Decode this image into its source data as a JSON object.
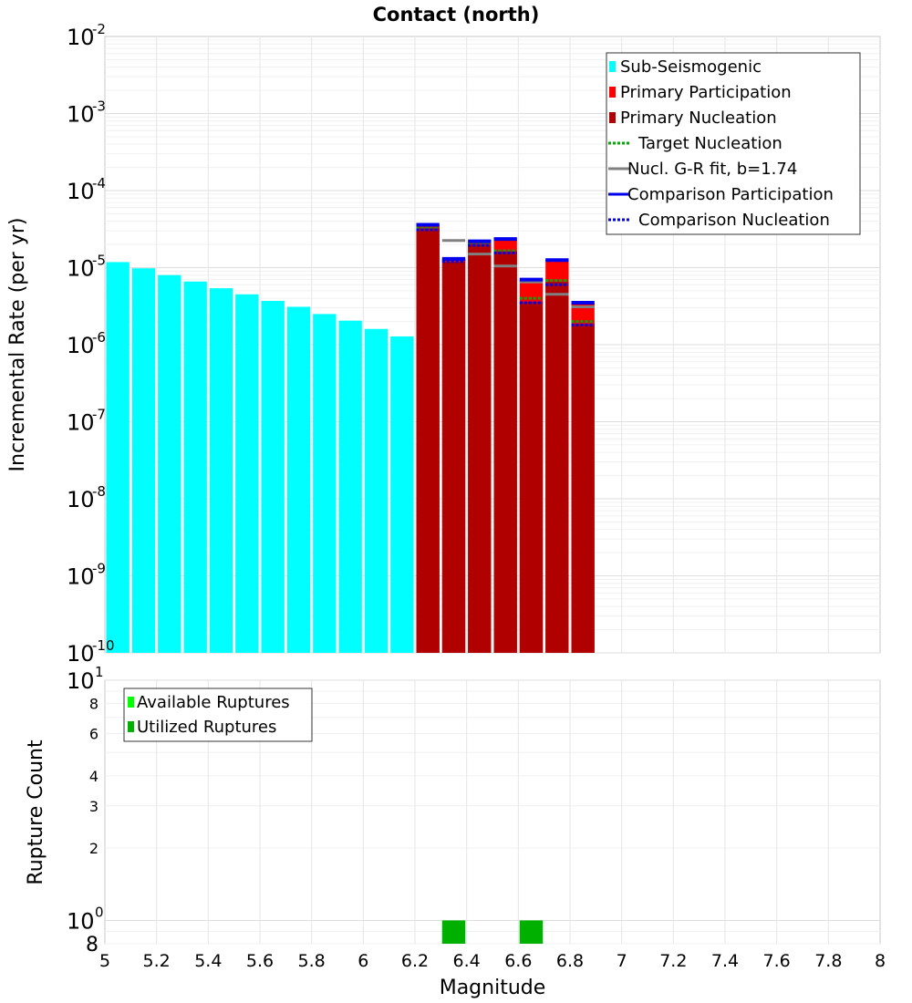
{
  "chart_data": [
    {
      "type": "bar",
      "title": "Contact (north)",
      "xlabel": "",
      "ylabel": "Incremental Rate (per yr)",
      "yscale": "log",
      "xlim": [
        5,
        8
      ],
      "ylim": [
        1e-10,
        0.01
      ],
      "y_tick_labels": [
        {
          "base": "10",
          "exp": "-2",
          "value": 0.01
        },
        {
          "base": "10",
          "exp": "-3",
          "value": 0.001
        },
        {
          "base": "10",
          "exp": "-4",
          "value": 0.0001
        },
        {
          "base": "10",
          "exp": "-5",
          "value": 1e-05
        },
        {
          "base": "10",
          "exp": "-6",
          "value": 1e-06
        },
        {
          "base": "10",
          "exp": "-7",
          "value": 1e-07
        },
        {
          "base": "10",
          "exp": "-8",
          "value": 1e-08
        },
        {
          "base": "10",
          "exp": "-9",
          "value": 1e-09
        },
        {
          "base": "10",
          "exp": "-10",
          "value": 1e-10
        }
      ],
      "bin_width": 0.1,
      "legend": {
        "position": "top-right",
        "entries": [
          {
            "label": "Sub-Seismogenic",
            "style": "box",
            "color": "#00ffff"
          },
          {
            "label": "Primary Participation",
            "style": "box",
            "color": "#ff0000"
          },
          {
            "label": "Primary Nucleation",
            "style": "box",
            "color": "#b00000"
          },
          {
            "label": "Target Nucleation",
            "style": "dotted",
            "color": "#00aa00"
          },
          {
            "label": "Nucl. G-R fit, b=1.74",
            "style": "solid",
            "color": "#808080"
          },
          {
            "label": "Comparison Participation",
            "style": "solid",
            "color": "#0000ee"
          },
          {
            "label": "Comparison Nucleation",
            "style": "dotted",
            "color": "#0000ee"
          }
        ]
      },
      "series": [
        {
          "name": "Sub-Seismogenic",
          "color": "#00ffff",
          "x": [
            5.05,
            5.15,
            5.25,
            5.35,
            5.45,
            5.55,
            5.65,
            5.75,
            5.85,
            5.95,
            6.05,
            6.15
          ],
          "values": [
            1.18e-05,
            9.8e-06,
            8e-06,
            6.6e-06,
            5.4e-06,
            4.5e-06,
            3.7e-06,
            3.1e-06,
            2.5e-06,
            2.05e-06,
            1.6e-06,
            1.28e-06
          ]
        },
        {
          "name": "Primary Participation",
          "color": "#ff0000",
          "x": [
            6.25,
            6.35,
            6.45,
            6.55,
            6.65,
            6.75,
            6.85
          ],
          "values": [
            3.6e-05,
            1.3e-05,
            2.2e-05,
            2.35e-05,
            7e-06,
            1.25e-05,
            3.5e-06
          ]
        },
        {
          "name": "Primary Nucleation",
          "color": "#b00000",
          "x": [
            6.25,
            6.35,
            6.45,
            6.55,
            6.65,
            6.75,
            6.85
          ],
          "values": [
            3.2e-05,
            1.2e-05,
            2e-05,
            1.6e-05,
            3.6e-06,
            6.5e-06,
            1.85e-06
          ]
        },
        {
          "name": "Target Nucleation",
          "color": "#00aa00",
          "x": [
            6.25,
            6.35,
            6.45,
            6.55,
            6.65,
            6.75,
            6.85
          ],
          "values": [
            3.25e-05,
            1.25e-05,
            2.05e-05,
            1.65e-05,
            4e-06,
            6.8e-06,
            2e-06
          ]
        },
        {
          "name": "Nucl. G-R fit, b=1.74",
          "color": "#808080",
          "x": [
            6.35,
            6.45,
            6.55,
            6.65,
            6.75,
            6.85
          ],
          "values": [
            2.25e-05,
            1.5e-05,
            1.05e-05,
            6.5e-06,
            4.5e-06,
            3.1e-06
          ]
        },
        {
          "name": "Comparison Participation",
          "color": "#0000ee",
          "x": [
            6.25,
            6.35,
            6.45,
            6.55,
            6.65,
            6.75,
            6.85
          ],
          "values": [
            3.6e-05,
            1.3e-05,
            2.2e-05,
            2.35e-05,
            7e-06,
            1.25e-05,
            3.5e-06
          ]
        },
        {
          "name": "Comparison Nucleation",
          "color": "#0000ee",
          "x": [
            6.25,
            6.35,
            6.45,
            6.55,
            6.65,
            6.75,
            6.85
          ],
          "values": [
            3.1e-05,
            1.2e-05,
            1.95e-05,
            1.55e-05,
            3.5e-06,
            6e-06,
            1.8e-06
          ]
        }
      ]
    },
    {
      "type": "bar",
      "title": "",
      "xlabel": "Magnitude",
      "ylabel": "Rupture Count",
      "yscale": "log",
      "xlim": [
        5,
        8
      ],
      "ylim": [
        0.8,
        10
      ],
      "x_ticks": [
        "5",
        "5.2",
        "5.4",
        "5.6",
        "5.8",
        "6",
        "6.2",
        "6.4",
        "6.6",
        "6.8",
        "7",
        "7.2",
        "7.4",
        "7.6",
        "7.8",
        "8"
      ],
      "y_major_ticks": [
        {
          "base": "10",
          "exp": "1",
          "value": 10
        },
        {
          "base": "10",
          "exp": "0",
          "value": 1
        }
      ],
      "y_minor_ticks": [
        "8",
        "6",
        "4",
        "3",
        "2",
        "8"
      ],
      "bin_width": 0.1,
      "legend": {
        "position": "top-left",
        "entries": [
          {
            "label": "Available Ruptures",
            "style": "box",
            "color": "#00ff00"
          },
          {
            "label": "Utilized Ruptures",
            "style": "box",
            "color": "#00b000"
          }
        ]
      },
      "series": [
        {
          "name": "Available Ruptures",
          "color": "#00ff00",
          "x": [
            6.35,
            6.65
          ],
          "values": [
            1,
            1
          ]
        },
        {
          "name": "Utilized Ruptures",
          "color": "#00b000",
          "x": [
            6.35,
            6.65
          ],
          "values": [
            1,
            1
          ]
        }
      ]
    }
  ]
}
